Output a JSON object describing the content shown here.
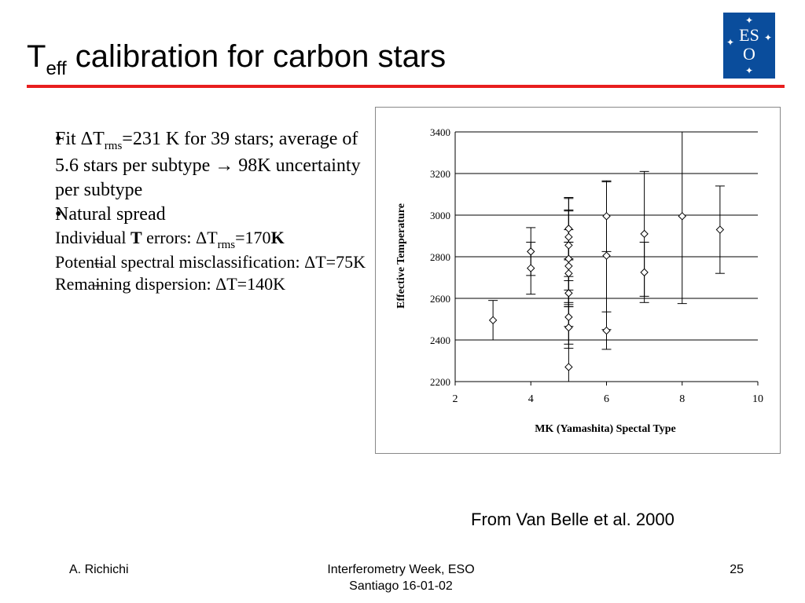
{
  "slide": {
    "title_main": "T",
    "title_sub": "eff",
    "title_rest": " calibration for carbon stars",
    "accent_color": "#e81e1e",
    "logo_color": "#0a4d9c",
    "logo_text": "ESO"
  },
  "bullets": {
    "b1_pre": "Fit ΔT",
    "b1_sub": "rms",
    "b1_post": "=231 K for 39 stars; average of 5.6 stars per subtype → 98K uncertainty per subtype",
    "b2": "Natural spread",
    "s1_pre": "Individual ",
    "s1_bold": "T",
    "s1_mid": " errors: ΔT",
    "s1_sub": "rms",
    "s1_val": "=170",
    "s1_bold2": "K",
    "s2": "Potential spectral misclassification: ΔT=75K",
    "s3": "Remaining dispersion: ΔT=140K"
  },
  "credit": "From Van Belle et al. 2000",
  "footer": {
    "author": "A. Richichi",
    "event_line1": "Interferometry Week,  ESO",
    "event_line2": "Santiago 16-01-02",
    "page": "25"
  },
  "chart_data": {
    "type": "scatter",
    "xlabel": "MK (Yamashita) Spectal Type",
    "ylabel": "Effective Temperature",
    "xlim": [
      2,
      10
    ],
    "ylim": [
      2200,
      3400
    ],
    "xticks": [
      2,
      4,
      6,
      8,
      10
    ],
    "yticks": [
      2200,
      2400,
      2600,
      2800,
      3000,
      3200,
      3400
    ],
    "grid": "horizontal",
    "marker": "diamond",
    "points": [
      {
        "x": 3,
        "y": 2495,
        "err": 95
      },
      {
        "x": 4,
        "y": 2825,
        "err": 115
      },
      {
        "x": 4,
        "y": 2745,
        "err": 125
      },
      {
        "x": 5,
        "y": 2935,
        "err": 145
      },
      {
        "x": 5,
        "y": 2895,
        "err": 190
      },
      {
        "x": 5,
        "y": 2855,
        "err": 170
      },
      {
        "x": 5,
        "y": 2790,
        "err": 230
      },
      {
        "x": 5,
        "y": 2755,
        "err": 175
      },
      {
        "x": 5,
        "y": 2720,
        "err": 150
      },
      {
        "x": 5,
        "y": 2625,
        "err": 160
      },
      {
        "x": 5,
        "y": 2510,
        "err": 130
      },
      {
        "x": 5,
        "y": 2460,
        "err": 100
      },
      {
        "x": 5,
        "y": 2270,
        "err": 600
      },
      {
        "x": 6,
        "y": 2995,
        "err": 170
      },
      {
        "x": 6,
        "y": 2805,
        "err": 355
      },
      {
        "x": 6,
        "y": 2445,
        "err": 90
      },
      {
        "x": 7,
        "y": 2910,
        "err": 300
      },
      {
        "x": 7,
        "y": 2725,
        "err": 145
      },
      {
        "x": 8,
        "y": 2995,
        "err": 420
      },
      {
        "x": 9,
        "y": 2930,
        "err": 210
      }
    ]
  }
}
